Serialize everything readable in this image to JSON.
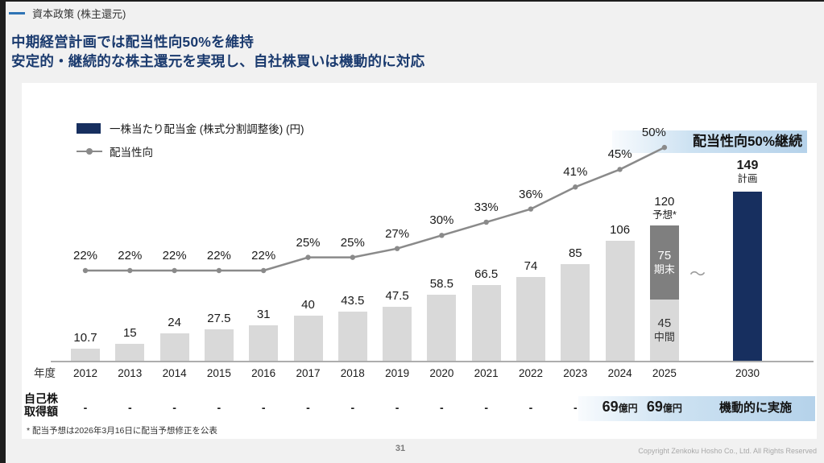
{
  "header": {
    "section": "資本政策 (株主還元)",
    "title_line1": "中期経営計画では配当性向50%を維持",
    "title_line2": "安定的・継続的な株主還元を実現し、自社株買いは機動的に対応"
  },
  "legend": {
    "bar_label": "一株当たり配当金 (株式分割調整後) (円)",
    "line_label": "配当性向"
  },
  "banners": {
    "payout": "配当性向50%継続",
    "buyback": "機動的に実施"
  },
  "axis": {
    "year_header": "年度",
    "gap_tilde": "～"
  },
  "buyback_header": {
    "line1": "自己株",
    "line2": "取得額"
  },
  "footnote": "* 配当予想は2026年3月16日に配当予想修正を公表",
  "footer": {
    "page_number": "31",
    "copyright": "Copyright  Zenkoku Hosho Co., Ltd. All Rights Reserved"
  },
  "colors": {
    "navy": "#172f5f",
    "bar_gray": "#d9d9d9",
    "bar_dark_gray": "#7f7f7f",
    "line_gray": "#8a8a8a",
    "banner_blue": "#b5d2ea",
    "title_blue": "#1a3a6e",
    "kicker_dash_blue": "#2e74b5"
  },
  "chart_data": {
    "type": "combo-bar-line",
    "title": "",
    "bar_series_name": "一株当たり配当金 (株式分割調整後) (円)",
    "line_series_name": "配当性向",
    "line_unit": "%",
    "bar_unit": "円",
    "years": [
      {
        "label": "2012",
        "bar": 10.7,
        "bar_label": "10.7",
        "payout": 22,
        "payout_label": "22%",
        "buyback": "-"
      },
      {
        "label": "2013",
        "bar": 15,
        "bar_label": "15",
        "payout": 22,
        "payout_label": "22%",
        "buyback": "-"
      },
      {
        "label": "2014",
        "bar": 24,
        "bar_label": "24",
        "payout": 22,
        "payout_label": "22%",
        "buyback": "-"
      },
      {
        "label": "2015",
        "bar": 27.5,
        "bar_label": "27.5",
        "payout": 22,
        "payout_label": "22%",
        "buyback": "-"
      },
      {
        "label": "2016",
        "bar": 31,
        "bar_label": "31",
        "payout": 22,
        "payout_label": "22%",
        "buyback": "-"
      },
      {
        "label": "2017",
        "bar": 40,
        "bar_label": "40",
        "payout": 25,
        "payout_label": "25%",
        "buyback": "-"
      },
      {
        "label": "2018",
        "bar": 43.5,
        "bar_label": "43.5",
        "payout": 25,
        "payout_label": "25%",
        "buyback": "-"
      },
      {
        "label": "2019",
        "bar": 47.5,
        "bar_label": "47.5",
        "payout": 27,
        "payout_label": "27%",
        "buyback": "-"
      },
      {
        "label": "2020",
        "bar": 58.5,
        "bar_label": "58.5",
        "payout": 30,
        "payout_label": "30%",
        "buyback": "-"
      },
      {
        "label": "2021",
        "bar": 66.5,
        "bar_label": "66.5",
        "payout": 33,
        "payout_label": "33%",
        "buyback": "-"
      },
      {
        "label": "2022",
        "bar": 74,
        "bar_label": "74",
        "payout": 36,
        "payout_label": "36%",
        "buyback": "-"
      },
      {
        "label": "2023",
        "bar": 85,
        "bar_label": "85",
        "payout": 41,
        "payout_label": "41%",
        "buyback": "-"
      },
      {
        "label": "2024",
        "bar": 106,
        "bar_label": "106",
        "payout": 45,
        "payout_label": "45%",
        "buyback": "69億円"
      },
      {
        "label": "2025",
        "bar": 120,
        "bar_label": "120",
        "bar_sublabel": "予想*",
        "payout": 50,
        "payout_label": "50%",
        "buyback": "69億円",
        "stacked": [
          {
            "value": 45,
            "label": "45",
            "sublabel": "中間",
            "kind": "light"
          },
          {
            "value": 75,
            "label": "75",
            "sublabel": "期末",
            "kind": "dark"
          }
        ]
      },
      {
        "label": "2030",
        "bar": 149,
        "bar_label": "149",
        "bar_sublabel": "計画",
        "kind": "navy",
        "plan": true
      }
    ]
  }
}
